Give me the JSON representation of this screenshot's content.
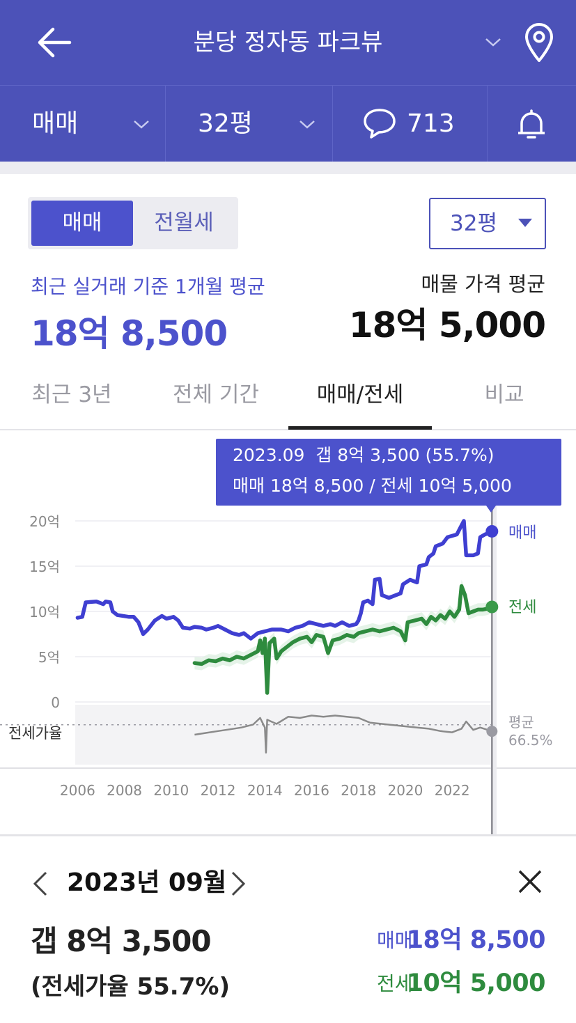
{
  "header": {
    "title": "분당 정자동 파크뷰",
    "back_icon": "arrow-left-icon",
    "dropdown_icon": "chevron-down-icon",
    "location_icon": "map-pin-icon",
    "bg_color": "#4c52b8"
  },
  "subbar": {
    "trade_type": "매매",
    "size": "32평",
    "comment_count": "713",
    "comment_icon": "chat-bubble-icon",
    "alarm_icon": "bell-icon"
  },
  "toggle": {
    "sale": "매매",
    "rent": "전월세",
    "selected": "매매"
  },
  "size_select": {
    "value": "32평"
  },
  "summary": {
    "recent_label": "최근 실거래 기준 1개월 평균",
    "recent_value": "18억 8,500",
    "listing_label": "매물 가격 평균",
    "listing_value": "18억 5,000"
  },
  "tabs": [
    {
      "label": "최근 3년"
    },
    {
      "label": "전체 기간"
    },
    {
      "label": "매매/전세"
    },
    {
      "label": "비교"
    }
  ],
  "tooltip": {
    "line1": "2023.09  갭 8억 3,500 (55.7%)",
    "line2": "매매 18억 8,500 / 전세 10억 5,000"
  },
  "chart_data": {
    "type": "line",
    "x_unit": "year",
    "xlim": [
      2005.9,
      2023.75
    ],
    "ylim": [
      0,
      20
    ],
    "y_tick_labels": [
      "20억",
      "15억",
      "10억",
      "5억",
      "0"
    ],
    "y_ticks": [
      20,
      15,
      10,
      5,
      0
    ],
    "x_ticks": [
      2006,
      2008,
      2010,
      2012,
      2014,
      2016,
      2018,
      2020,
      2022
    ],
    "x_tick_labels": [
      "2006",
      "2008",
      "2010",
      "2012",
      "2014",
      "2016",
      "2018",
      "2020",
      "2022"
    ],
    "series": [
      {
        "name": "매매",
        "color": "#3f3fd1",
        "points": [
          [
            2006.0,
            9.3
          ],
          [
            2006.2,
            9.4
          ],
          [
            2006.35,
            11.0
          ],
          [
            2006.8,
            11.1
          ],
          [
            2007.1,
            10.8
          ],
          [
            2007.2,
            11.1
          ],
          [
            2007.4,
            11.0
          ],
          [
            2007.5,
            10.0
          ],
          [
            2007.7,
            9.6
          ],
          [
            2008.2,
            9.4
          ],
          [
            2008.4,
            9.4
          ],
          [
            2008.6,
            8.8
          ],
          [
            2008.8,
            7.5
          ],
          [
            2009.0,
            8.0
          ],
          [
            2009.3,
            9.0
          ],
          [
            2009.6,
            9.5
          ],
          [
            2009.8,
            9.2
          ],
          [
            2010.1,
            9.4
          ],
          [
            2010.3,
            9.0
          ],
          [
            2010.5,
            8.2
          ],
          [
            2010.8,
            8.1
          ],
          [
            2011.0,
            8.3
          ],
          [
            2011.3,
            8.2
          ],
          [
            2011.5,
            8.0
          ],
          [
            2011.8,
            8.2
          ],
          [
            2012.0,
            8.4
          ],
          [
            2012.3,
            8.0
          ],
          [
            2012.6,
            7.6
          ],
          [
            2012.9,
            7.4
          ],
          [
            2013.1,
            7.6
          ],
          [
            2013.4,
            7.0
          ],
          [
            2013.7,
            7.6
          ],
          [
            2014.0,
            7.8
          ],
          [
            2014.3,
            8.0
          ],
          [
            2014.7,
            8.0
          ],
          [
            2015.0,
            7.8
          ],
          [
            2015.3,
            8.2
          ],
          [
            2015.6,
            8.4
          ],
          [
            2015.9,
            8.8
          ],
          [
            2016.2,
            8.6
          ],
          [
            2016.5,
            8.4
          ],
          [
            2016.8,
            8.6
          ],
          [
            2017.0,
            8.4
          ],
          [
            2017.3,
            8.8
          ],
          [
            2017.6,
            8.4
          ],
          [
            2017.9,
            8.6
          ],
          [
            2018.0,
            9.0
          ],
          [
            2018.1,
            9.8
          ],
          [
            2018.2,
            11.0
          ],
          [
            2018.4,
            11.2
          ],
          [
            2018.6,
            10.8
          ],
          [
            2018.7,
            13.5
          ],
          [
            2018.9,
            13.6
          ],
          [
            2019.0,
            11.8
          ],
          [
            2019.3,
            11.5
          ],
          [
            2019.6,
            11.8
          ],
          [
            2019.8,
            12.0
          ],
          [
            2019.9,
            13.0
          ],
          [
            2020.2,
            13.5
          ],
          [
            2020.5,
            13.2
          ],
          [
            2020.6,
            15.0
          ],
          [
            2020.9,
            15.2
          ],
          [
            2021.0,
            16.0
          ],
          [
            2021.2,
            16.4
          ],
          [
            2021.3,
            17.2
          ],
          [
            2021.6,
            17.5
          ],
          [
            2021.8,
            18.2
          ],
          [
            2022.2,
            18.5
          ],
          [
            2022.4,
            19.5
          ],
          [
            2022.5,
            20.0
          ],
          [
            2022.6,
            16.2
          ],
          [
            2022.9,
            16.2
          ],
          [
            2023.1,
            16.4
          ],
          [
            2023.2,
            18.2
          ],
          [
            2023.4,
            18.5
          ],
          [
            2023.5,
            18.6
          ],
          [
            2023.7,
            18.85
          ]
        ]
      },
      {
        "name": "전세",
        "color": "#2e8b3e",
        "points": [
          [
            2011.0,
            4.3
          ],
          [
            2011.3,
            4.2
          ],
          [
            2011.6,
            4.6
          ],
          [
            2011.9,
            4.5
          ],
          [
            2012.2,
            4.8
          ],
          [
            2012.5,
            4.6
          ],
          [
            2012.8,
            5.0
          ],
          [
            2013.1,
            4.8
          ],
          [
            2013.4,
            5.2
          ],
          [
            2013.7,
            5.6
          ],
          [
            2013.8,
            6.8
          ],
          [
            2013.9,
            5.4
          ],
          [
            2014.0,
            7.0
          ],
          [
            2014.1,
            1.0
          ],
          [
            2014.2,
            6.5
          ],
          [
            2014.4,
            7.0
          ],
          [
            2014.5,
            4.8
          ],
          [
            2014.7,
            5.6
          ],
          [
            2014.9,
            6.0
          ],
          [
            2015.2,
            6.6
          ],
          [
            2015.5,
            7.0
          ],
          [
            2015.8,
            7.2
          ],
          [
            2016.0,
            6.6
          ],
          [
            2016.2,
            7.4
          ],
          [
            2016.5,
            7.2
          ],
          [
            2016.7,
            5.4
          ],
          [
            2016.9,
            6.8
          ],
          [
            2017.2,
            7.0
          ],
          [
            2017.5,
            7.4
          ],
          [
            2017.8,
            7.2
          ],
          [
            2018.0,
            7.6
          ],
          [
            2018.3,
            7.8
          ],
          [
            2018.6,
            8.0
          ],
          [
            2018.9,
            7.8
          ],
          [
            2019.2,
            8.0
          ],
          [
            2019.5,
            8.2
          ],
          [
            2019.8,
            7.8
          ],
          [
            2020.0,
            6.8
          ],
          [
            2020.1,
            8.8
          ],
          [
            2020.4,
            9.0
          ],
          [
            2020.7,
            9.2
          ],
          [
            2020.9,
            8.6
          ],
          [
            2021.1,
            9.4
          ],
          [
            2021.3,
            9.0
          ],
          [
            2021.5,
            9.6
          ],
          [
            2021.7,
            9.2
          ],
          [
            2021.9,
            10.0
          ],
          [
            2022.1,
            9.4
          ],
          [
            2022.3,
            10.2
          ],
          [
            2022.4,
            12.8
          ],
          [
            2022.55,
            11.8
          ],
          [
            2022.7,
            9.8
          ],
          [
            2022.9,
            10.0
          ],
          [
            2023.1,
            10.2
          ],
          [
            2023.3,
            10.2
          ],
          [
            2023.5,
            10.3
          ],
          [
            2023.7,
            10.5
          ]
        ]
      }
    ],
    "ratio_series": {
      "name": "전세가율",
      "average_label": "평균",
      "average_value": "66.5%",
      "color": "#8a8a8a",
      "points": [
        [
          2011.0,
          50
        ],
        [
          2011.5,
          53
        ],
        [
          2012.0,
          56
        ],
        [
          2012.5,
          59
        ],
        [
          2013.0,
          62
        ],
        [
          2013.5,
          67
        ],
        [
          2013.8,
          78
        ],
        [
          2014.0,
          62
        ],
        [
          2014.05,
          20
        ],
        [
          2014.1,
          75
        ],
        [
          2014.5,
          68
        ],
        [
          2015.0,
          80
        ],
        [
          2015.5,
          78
        ],
        [
          2016.0,
          82
        ],
        [
          2016.5,
          80
        ],
        [
          2017.0,
          82
        ],
        [
          2017.5,
          80
        ],
        [
          2018.0,
          78
        ],
        [
          2018.5,
          70
        ],
        [
          2019.0,
          68
        ],
        [
          2019.5,
          66
        ],
        [
          2020.0,
          64
        ],
        [
          2020.5,
          62
        ],
        [
          2021.0,
          60
        ],
        [
          2021.5,
          56
        ],
        [
          2022.0,
          54
        ],
        [
          2022.4,
          60
        ],
        [
          2022.6,
          72
        ],
        [
          2022.9,
          58
        ],
        [
          2023.2,
          62
        ],
        [
          2023.7,
          55.7
        ]
      ],
      "ylim": [
        0,
        100
      ],
      "average": 66.5
    },
    "selected_x": 2023.7
  },
  "detail": {
    "month": "2023년 09월",
    "gap": "갭 8억 3,500",
    "ratio": "(전세가율 55.7%)",
    "sale_label": "매매",
    "sale_value": "18억 8,500",
    "rent_label": "전세",
    "rent_value": "10억 5,000",
    "sale_color": "#4c52cc",
    "rent_color": "#2e8b3e"
  }
}
